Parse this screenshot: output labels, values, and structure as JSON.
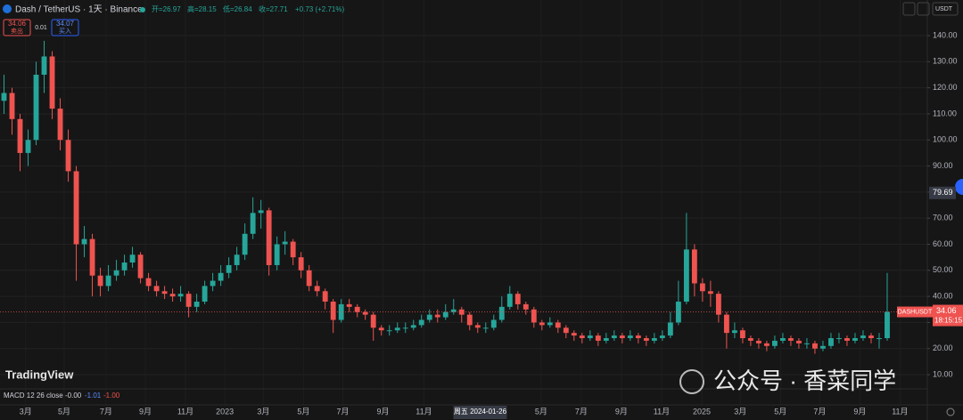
{
  "toolbar": {
    "symbol": "Dash / TetherUS · 1天 · Binance",
    "ohlc": [
      "开=26.97",
      "高=28.15",
      "低=26.84",
      "收=27.71",
      "+0.73 (+2.71%)"
    ],
    "sell_price": "34.06",
    "sell_label": "卖出",
    "spread": "0.01",
    "buy_price": "34.07",
    "buy_label": "买入",
    "currency": "USDT"
  },
  "indicator": {
    "name": "MACD 12 26 close",
    "values": [
      "-0.00",
      "-1.01",
      "-1.00"
    ]
  },
  "logo": "TradingView",
  "watermark": "公众号 · 香菜同学",
  "chart_data": {
    "type": "candlestick",
    "up_color": "#26a69a",
    "down_color": "#ef5350",
    "open": [
      115,
      118,
      108,
      95,
      100,
      125,
      132,
      112,
      100,
      88,
      60,
      62,
      48,
      44,
      48,
      50,
      53,
      56,
      47,
      44,
      42,
      41,
      40,
      41,
      36,
      38,
      44,
      46,
      49,
      52,
      56,
      64,
      72,
      73,
      52,
      60,
      61,
      55,
      50,
      44,
      42,
      38,
      31,
      37,
      36,
      34,
      33,
      28,
      27,
      27,
      28,
      28,
      29,
      31,
      33,
      32,
      34,
      35,
      33,
      29,
      28,
      28,
      31,
      36,
      41,
      37,
      35,
      30,
      29,
      30,
      28,
      26,
      25,
      24,
      25,
      23,
      24,
      25,
      24,
      25,
      24,
      23,
      24,
      25,
      30,
      38,
      58,
      45,
      42,
      41,
      33,
      26,
      27,
      24,
      23,
      22,
      21,
      23,
      24,
      23,
      22,
      22,
      20,
      21,
      24,
      24,
      23,
      24,
      25,
      24,
      24
    ],
    "high": [
      125,
      120,
      110,
      104,
      130,
      138,
      134,
      116,
      104,
      90,
      67,
      64,
      51,
      52,
      54,
      56,
      59,
      57,
      49,
      46,
      44,
      43,
      44,
      42,
      41,
      46,
      49,
      52,
      55,
      59,
      68,
      78,
      77,
      74,
      63,
      65,
      62,
      57,
      52,
      46,
      43,
      39,
      39,
      39,
      37,
      35,
      34,
      29,
      29,
      30,
      30,
      31,
      33,
      35,
      35,
      37,
      39,
      36,
      34,
      30,
      30,
      33,
      40,
      44,
      42,
      38,
      36,
      31,
      32,
      31,
      29,
      27,
      26,
      27,
      26,
      26,
      27,
      26,
      27,
      26,
      25,
      26,
      27,
      34,
      46,
      72,
      60,
      47,
      46,
      42,
      34,
      30,
      28,
      25,
      24,
      23,
      25,
      26,
      25,
      24,
      24,
      23,
      23,
      26,
      26,
      25,
      26,
      27,
      26,
      26,
      49
    ],
    "low": [
      110,
      102,
      88,
      90,
      98,
      118,
      108,
      96,
      84,
      46,
      55,
      40,
      40,
      42,
      46,
      48,
      51,
      45,
      42,
      40,
      39,
      38,
      38,
      32,
      34,
      37,
      42,
      44,
      47,
      50,
      54,
      62,
      66,
      48,
      50,
      56,
      52,
      47,
      42,
      40,
      35,
      26,
      30,
      34,
      32,
      31,
      23,
      25,
      25,
      26,
      26,
      27,
      28,
      30,
      30,
      31,
      33,
      30,
      27,
      26,
      26,
      27,
      30,
      35,
      35,
      33,
      28,
      27,
      28,
      26,
      24,
      23,
      22,
      23,
      21,
      22,
      23,
      22,
      23,
      22,
      21,
      22,
      23,
      24,
      29,
      37,
      40,
      38,
      36,
      30,
      20,
      24,
      22,
      21,
      20,
      19,
      20,
      22,
      21,
      20,
      20,
      18,
      19,
      20,
      22,
      21,
      22,
      23,
      22,
      20,
      23
    ],
    "close": [
      118,
      108,
      95,
      100,
      125,
      132,
      112,
      100,
      88,
      60,
      62,
      48,
      44,
      48,
      50,
      53,
      56,
      47,
      44,
      42,
      41,
      40,
      41,
      36,
      38,
      44,
      46,
      49,
      52,
      56,
      64,
      72,
      73,
      52,
      60,
      61,
      55,
      50,
      44,
      42,
      38,
      31,
      37,
      36,
      34,
      33,
      28,
      27,
      27,
      28,
      28,
      29,
      31,
      33,
      32,
      34,
      35,
      33,
      29,
      28,
      28,
      31,
      36,
      41,
      37,
      35,
      30,
      29,
      30,
      28,
      26,
      25,
      24,
      25,
      23,
      24,
      25,
      24,
      25,
      24,
      23,
      24,
      25,
      30,
      38,
      58,
      45,
      42,
      41,
      33,
      26,
      27,
      24,
      23,
      22,
      21,
      23,
      24,
      23,
      22,
      22,
      20,
      21,
      24,
      24,
      23,
      24,
      25,
      24,
      24,
      34.06
    ],
    "xlim": [
      -0.5,
      115
    ],
    "xticks": [
      {
        "value": 2.7,
        "label": "3月"
      },
      {
        "value": 7.5,
        "label": "5月"
      },
      {
        "value": 12.7,
        "label": "7月"
      },
      {
        "value": 17.6,
        "label": "9月"
      },
      {
        "value": 22.6,
        "label": "11月"
      },
      {
        "value": 27.5,
        "label": "2023"
      },
      {
        "value": 32.3,
        "label": "3月"
      },
      {
        "value": 37.3,
        "label": "5月"
      },
      {
        "value": 42.2,
        "label": "7月"
      },
      {
        "value": 47.2,
        "label": "9月"
      },
      {
        "value": 52.3,
        "label": "11月"
      },
      {
        "value": 66.9,
        "label": "5月"
      },
      {
        "value": 71.9,
        "label": "7月"
      },
      {
        "value": 76.9,
        "label": "9月"
      },
      {
        "value": 81.9,
        "label": "11月"
      },
      {
        "value": 86.9,
        "label": "2025"
      },
      {
        "value": 91.7,
        "label": "3月"
      },
      {
        "value": 96.7,
        "label": "5月"
      },
      {
        "value": 101.6,
        "label": "7月"
      },
      {
        "value": 106.6,
        "label": "9月"
      },
      {
        "value": 111.6,
        "label": "11月"
      }
    ],
    "crosshair_x": {
      "value": 59.3,
      "label": "周五 2024-01-26"
    },
    "ylim": [
      5.24,
      153.65
    ],
    "yticks": [
      {
        "value": 140,
        "label": "140.00"
      },
      {
        "value": 130,
        "label": "130.00"
      },
      {
        "value": 120,
        "label": "120.00"
      },
      {
        "value": 110,
        "label": "110.00"
      },
      {
        "value": 100,
        "label": "100.00"
      },
      {
        "value": 90,
        "label": "90.00"
      },
      {
        "value": 80,
        "label": "80.00"
      },
      {
        "value": 70,
        "label": "70.00"
      },
      {
        "value": 60,
        "label": "60.00"
      },
      {
        "value": 50,
        "label": "50.00"
      },
      {
        "value": 40,
        "label": "40.00"
      },
      {
        "value": 30,
        "label": "30.00"
      },
      {
        "value": 20,
        "label": "20.00"
      },
      {
        "value": 10,
        "label": "10.00"
      }
    ],
    "grid": true,
    "crosshair_price": 79.69,
    "current_price": 34.06,
    "price_tag": "DASHUSDT",
    "countdown": "18:15:15"
  }
}
